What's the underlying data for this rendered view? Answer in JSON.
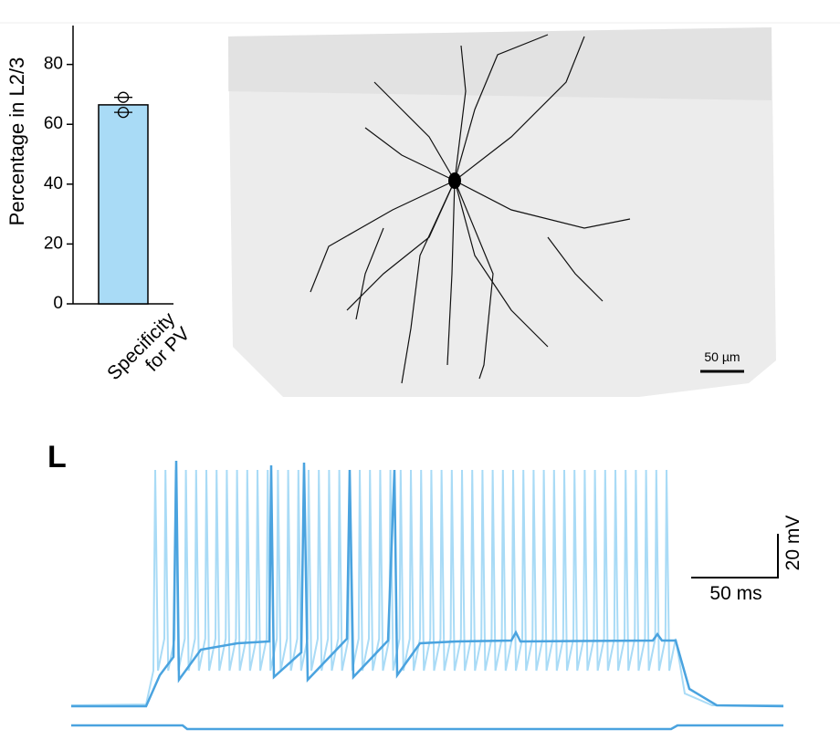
{
  "chart_data": {
    "type": "bar",
    "ylabel": "Percentage in L2/3",
    "categories": [
      "Specificity\nfor PV"
    ],
    "values": [
      66.5
    ],
    "points": [
      [
        69,
        64
      ]
    ],
    "color": "#a9dbf6",
    "ylim": [
      0,
      93
    ],
    "yticks": [
      0,
      20,
      40,
      60,
      80
    ]
  },
  "image_scale_bar": "50 µm",
  "panel_label": "L",
  "trace_scale_bars": {
    "voltage": "20 mV",
    "time": "50 ms"
  }
}
